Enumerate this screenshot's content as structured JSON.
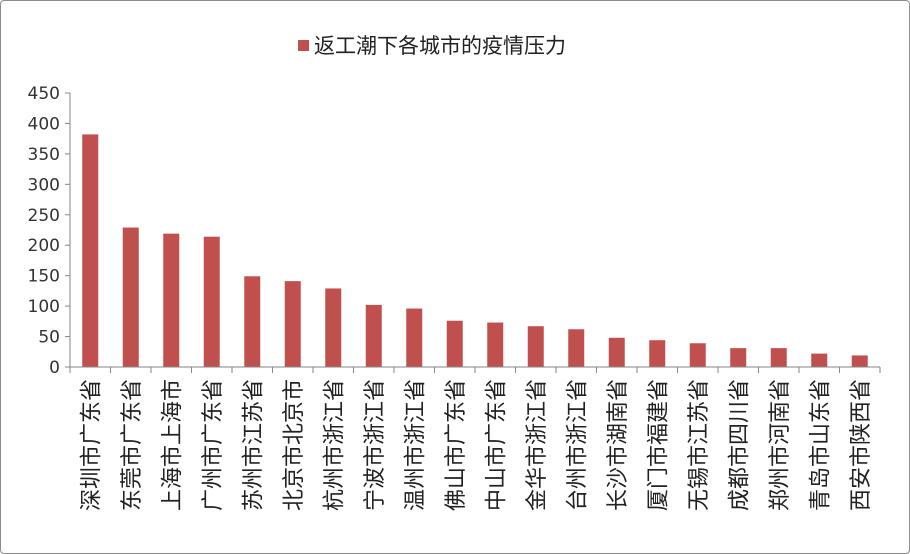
{
  "chart_data": {
    "type": "bar",
    "title": "",
    "xlabel": "",
    "ylabel": "",
    "ylim": [
      0,
      450
    ],
    "yticks": [
      0,
      50,
      100,
      150,
      200,
      250,
      300,
      350,
      400,
      450
    ],
    "grid": false,
    "legend_position": "top-center",
    "bar_color": "#C0504D",
    "categories": [
      "深圳市广东省",
      "东莞市广东省",
      "上海市上海市",
      "广州市广东省",
      "苏州市江苏省",
      "北京市北京市",
      "杭州市浙江省",
      "宁波市浙江省",
      "温州市浙江省",
      "佛山市广东省",
      "中山市广东省",
      "金华市浙江省",
      "台州市浙江省",
      "长沙市湖南省",
      "厦门市福建省",
      "无锡市江苏省",
      "成都市四川省",
      "郑州市河南省",
      "青岛市山东省",
      "西安市陕西省"
    ],
    "series": [
      {
        "name": "返工潮下各城市的疫情压力",
        "values": [
          382,
          229,
          219,
          214,
          149,
          141,
          129,
          102,
          96,
          76,
          73,
          67,
          62,
          48,
          44,
          39,
          31,
          31,
          22,
          19
        ]
      }
    ]
  }
}
